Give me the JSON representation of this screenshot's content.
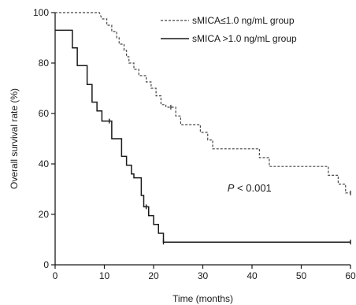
{
  "chart_data": {
    "type": "line",
    "step": true,
    "xlabel": "Time (months)",
    "ylabel": "Overall survival rate (%)",
    "xlim": [
      0,
      60
    ],
    "ylim": [
      0,
      100
    ],
    "xticks": [
      0,
      10,
      20,
      30,
      40,
      50,
      60
    ],
    "yticks": [
      0,
      20,
      40,
      60,
      80,
      100
    ],
    "grid": false,
    "legend_position": "top-right",
    "annotation": {
      "italic_prefix": "P",
      "rest": "< 0.001",
      "at": [
        35,
        29
      ]
    },
    "series": [
      {
        "name": "sMICA≤1.0 ng/mL group",
        "style": "dashed",
        "color": "#444444",
        "points": [
          [
            0,
            100
          ],
          [
            9,
            100
          ],
          [
            9.5,
            97.5
          ],
          [
            10.5,
            97.5
          ],
          [
            10.5,
            95
          ],
          [
            11.5,
            95
          ],
          [
            11.5,
            92.5
          ],
          [
            12.5,
            92.5
          ],
          [
            12.5,
            90
          ],
          [
            13,
            90
          ],
          [
            13,
            87.5
          ],
          [
            14,
            87.5
          ],
          [
            14,
            85
          ],
          [
            14.5,
            85
          ],
          [
            14.5,
            82.5
          ],
          [
            15,
            82.5
          ],
          [
            15,
            80
          ],
          [
            16,
            80
          ],
          [
            16,
            77.5
          ],
          [
            17,
            77.5
          ],
          [
            17,
            75
          ],
          [
            18.5,
            75
          ],
          [
            18.5,
            72.5
          ],
          [
            19.5,
            72.5
          ],
          [
            19.5,
            70
          ],
          [
            20.5,
            70
          ],
          [
            20.5,
            67
          ],
          [
            21.5,
            67
          ],
          [
            21.5,
            63.5
          ],
          [
            22.5,
            63.5
          ],
          [
            22.5,
            62.5
          ],
          [
            24.5,
            62.5
          ],
          [
            24.5,
            59
          ],
          [
            25.5,
            59
          ],
          [
            25.5,
            55.5
          ],
          [
            29.5,
            55.5
          ],
          [
            29.5,
            52.5
          ],
          [
            31,
            52.5
          ],
          [
            31,
            49.5
          ],
          [
            32,
            49.5
          ],
          [
            32,
            46
          ],
          [
            41.5,
            46
          ],
          [
            41.5,
            42.5
          ],
          [
            43.5,
            42.5
          ],
          [
            43.5,
            39
          ],
          [
            55.5,
            39
          ],
          [
            55.5,
            35.5
          ],
          [
            57.5,
            35.5
          ],
          [
            57.5,
            32
          ],
          [
            59,
            32
          ],
          [
            59,
            28.5
          ],
          [
            60,
            28.5
          ]
        ],
        "censored": [
          [
            23.5,
            62.5
          ],
          [
            60,
            28.5
          ]
        ]
      },
      {
        "name": "sMICA >1.0 ng/mL group",
        "style": "solid",
        "color": "#1a1a1a",
        "points": [
          [
            0,
            93
          ],
          [
            3.5,
            93
          ],
          [
            3.5,
            86
          ],
          [
            4.5,
            86
          ],
          [
            4.5,
            79
          ],
          [
            6.5,
            79
          ],
          [
            6.5,
            71.5
          ],
          [
            7.5,
            71.5
          ],
          [
            7.5,
            64.5
          ],
          [
            8.5,
            64.5
          ],
          [
            8.5,
            61
          ],
          [
            9.5,
            61
          ],
          [
            9.5,
            57
          ],
          [
            11.5,
            57
          ],
          [
            11.5,
            50
          ],
          [
            13.5,
            50
          ],
          [
            13.5,
            43
          ],
          [
            14.5,
            43
          ],
          [
            14.5,
            39.5
          ],
          [
            15.5,
            39.5
          ],
          [
            15.5,
            36
          ],
          [
            16,
            36
          ],
          [
            16,
            34.5
          ],
          [
            17.5,
            34.5
          ],
          [
            17.5,
            27.5
          ],
          [
            18,
            27.5
          ],
          [
            18,
            23
          ],
          [
            19,
            23
          ],
          [
            19,
            19.5
          ],
          [
            20,
            19.5
          ],
          [
            20,
            16
          ],
          [
            21,
            16
          ],
          [
            21,
            12.5
          ],
          [
            22,
            12.5
          ],
          [
            22,
            9
          ],
          [
            60,
            9
          ]
        ],
        "censored": [
          [
            11,
            57
          ],
          [
            18.5,
            23
          ],
          [
            22,
            9
          ],
          [
            60,
            9
          ]
        ]
      }
    ]
  }
}
